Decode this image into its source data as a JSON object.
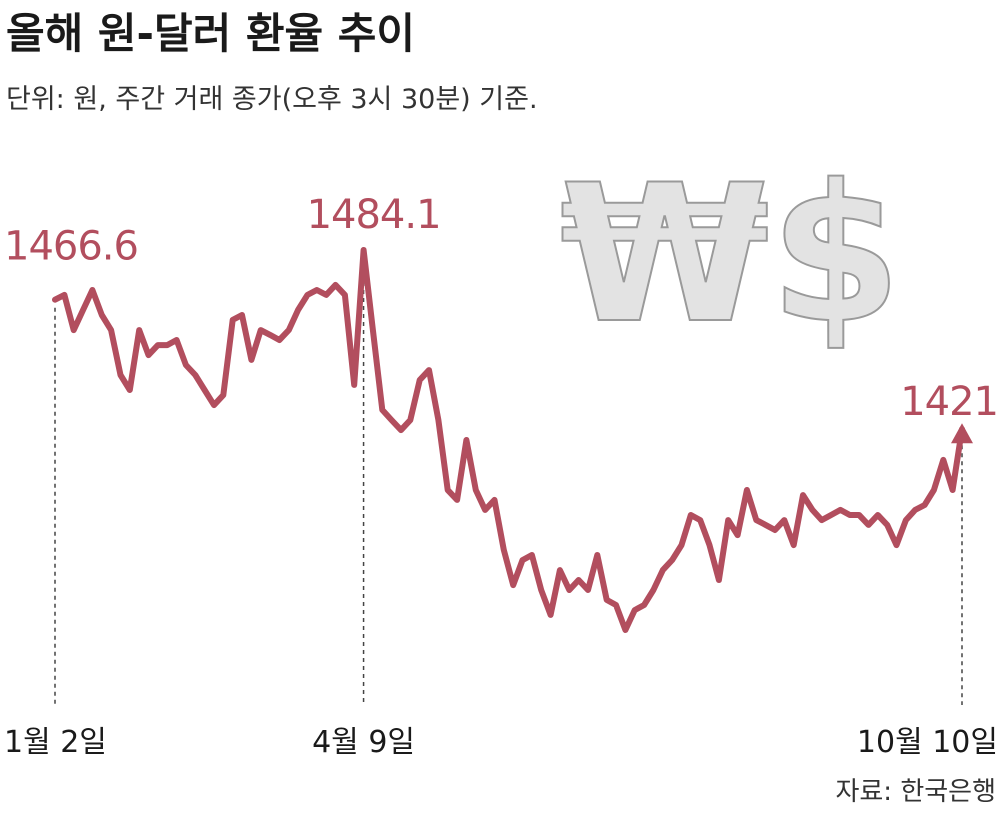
{
  "chart_data": {
    "type": "line",
    "title": "올해 원-달러 환율 추이",
    "subtitle": "단위: 원, 주간 거래 종가(오후 3시 30분) 기준.",
    "source": "자료: 한국은행",
    "illustration_text": "₩$",
    "color": "#b24e5e",
    "categories": [
      "1월 2일",
      null,
      null,
      null,
      null,
      null,
      null,
      null,
      null,
      null,
      null,
      null,
      null,
      null,
      null,
      null,
      null,
      null,
      null,
      null,
      null,
      null,
      null,
      null,
      null,
      null,
      null,
      null,
      null,
      null,
      null,
      null,
      null,
      "4월 9일",
      null,
      null,
      null,
      null,
      null,
      null,
      null,
      null,
      null,
      null,
      null,
      null,
      null,
      null,
      null,
      null,
      null,
      null,
      null,
      null,
      null,
      null,
      null,
      null,
      null,
      null,
      null,
      null,
      null,
      null,
      null,
      null,
      null,
      null,
      null,
      null,
      null,
      null,
      null,
      null,
      null,
      null,
      null,
      null,
      null,
      null,
      null,
      null,
      null,
      null,
      null,
      null,
      null,
      null,
      null,
      null,
      null,
      null,
      null,
      null,
      null,
      null,
      null,
      "10월 10일"
    ],
    "values": [
      1466.6,
      1468.3,
      1455.9,
      1463.0,
      1470.0,
      1461.2,
      1455.9,
      1440.1,
      1434.8,
      1455.9,
      1447.1,
      1450.6,
      1450.6,
      1452.4,
      1443.6,
      1440.1,
      1434.8,
      1429.5,
      1433.0,
      1459.5,
      1461.2,
      1445.4,
      1455.9,
      1454.2,
      1452.4,
      1455.9,
      1463.0,
      1468.3,
      1470.0,
      1468.3,
      1471.8,
      1468.3,
      1436.6,
      1484.1,
      1455.9,
      1427.8,
      1424.2,
      1420.7,
      1424.2,
      1438.3,
      1441.8,
      1424.2,
      1399.6,
      1396.1,
      1417.2,
      1399.6,
      1392.6,
      1396.1,
      1378.5,
      1366.1,
      1374.9,
      1376.7,
      1364.4,
      1355.6,
      1371.4,
      1364.4,
      1367.9,
      1364.4,
      1376.7,
      1360.9,
      1359.1,
      1350.3,
      1357.3,
      1359.1,
      1364.4,
      1371.4,
      1374.9,
      1380.2,
      1390.8,
      1389.0,
      1380.2,
      1367.9,
      1389.0,
      1383.7,
      1399.6,
      1389.0,
      1387.3,
      1385.5,
      1389.0,
      1380.2,
      1397.8,
      1392.6,
      1389.0,
      1390.8,
      1392.6,
      1390.8,
      1390.8,
      1387.3,
      1390.8,
      1387.3,
      1380.2,
      1389.0,
      1392.6,
      1394.3,
      1399.6,
      1410.2,
      1399.6,
      1421
    ]
  }
}
